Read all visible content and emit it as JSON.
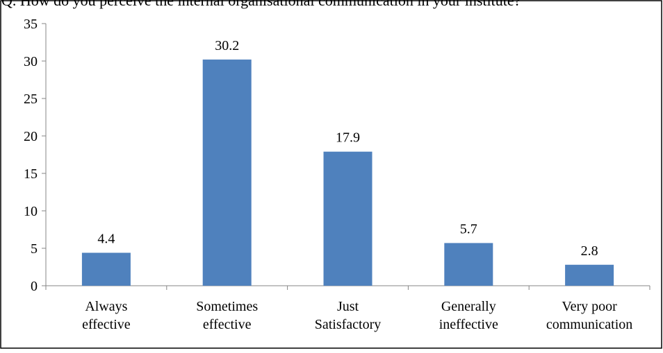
{
  "header": {
    "clipped_text": "Q. How do you perceive the internal organisational communication in your institute?"
  },
  "chart_data": {
    "type": "bar",
    "categories": [
      [
        "Always",
        "effective"
      ],
      [
        "Sometimes",
        "effective"
      ],
      [
        "Just",
        "Satisfactory"
      ],
      [
        "Generally",
        "ineffective"
      ],
      [
        "Very poor",
        "communication"
      ]
    ],
    "values": [
      4.4,
      30.2,
      17.9,
      5.7,
      2.8
    ],
    "data_labels": [
      "4.4",
      "30.2",
      "17.9",
      "5.7",
      "2.8"
    ],
    "yticks": [
      0,
      5,
      10,
      15,
      20,
      25,
      30,
      35
    ],
    "ylim": [
      0,
      35
    ],
    "grid": false,
    "legend": "none",
    "bar_color": "#4f81bd",
    "axis_color": "#868686"
  }
}
